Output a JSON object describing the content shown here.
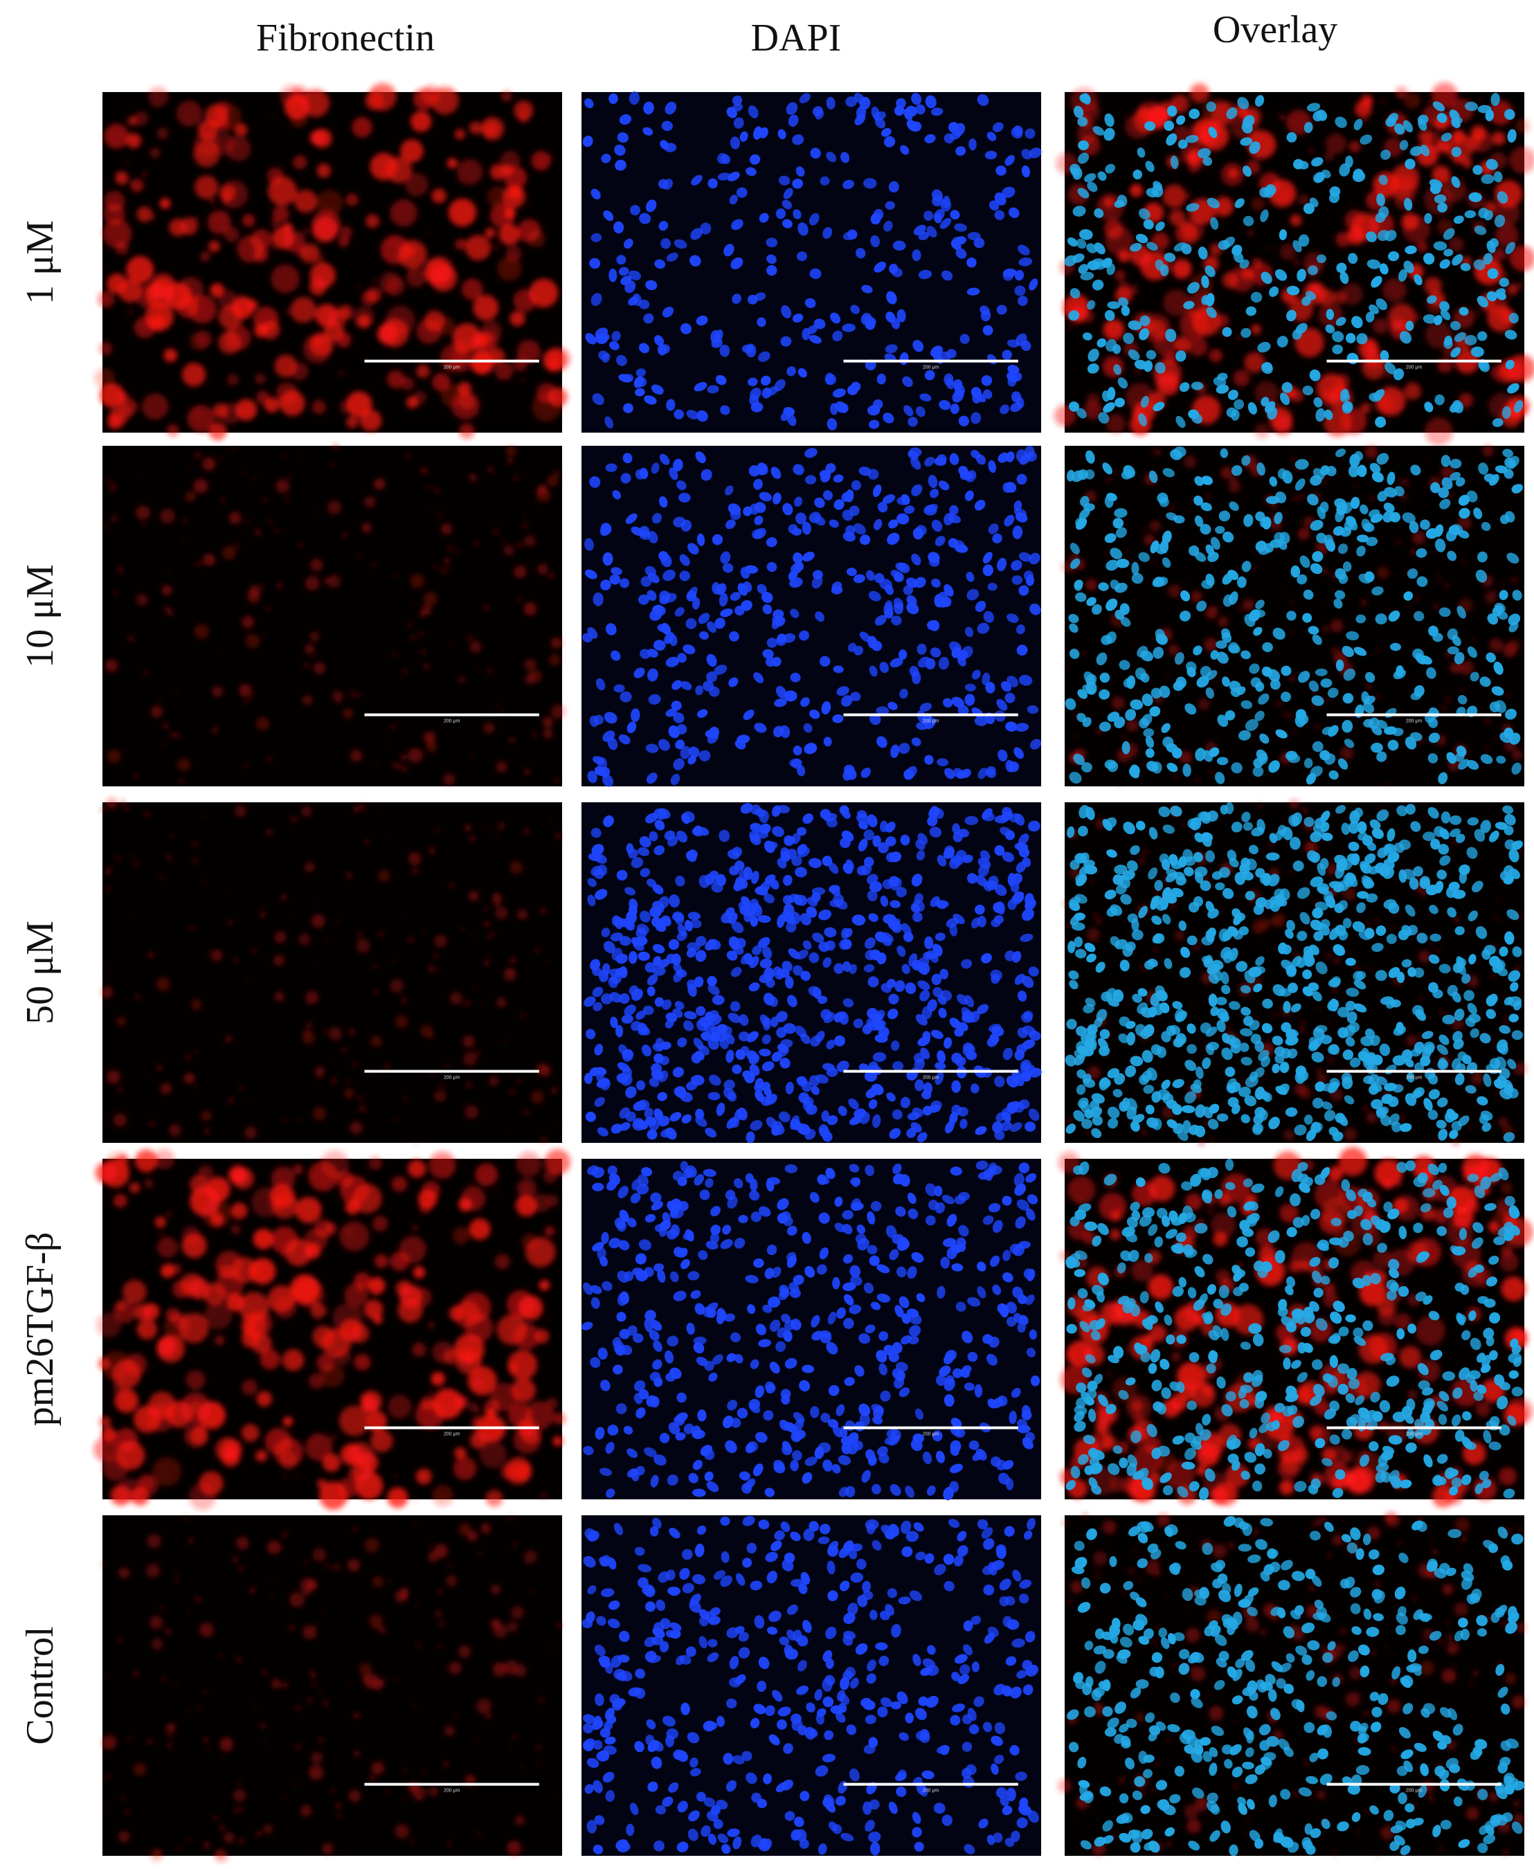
{
  "columns": [
    "Fibronectin",
    "DAPI",
    "Overlay"
  ],
  "rows": [
    "1 μM",
    "10 μM",
    "50 μM",
    "pm26TGF-β",
    "Control"
  ],
  "scale_bar_label": "200 μm"
}
